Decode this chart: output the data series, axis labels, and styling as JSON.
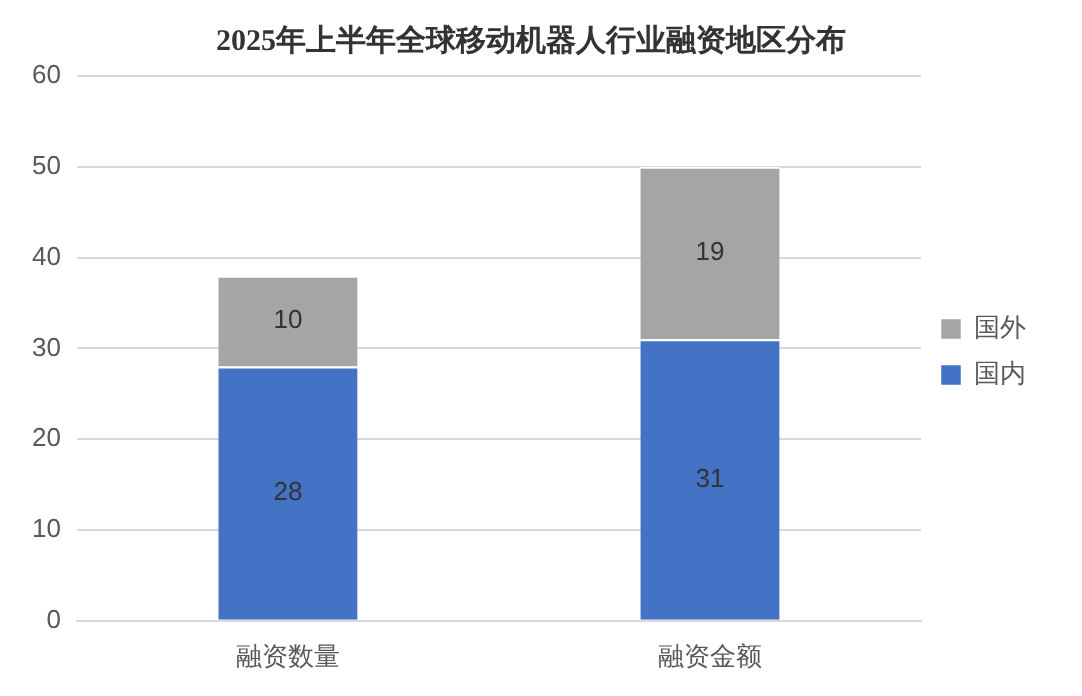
{
  "chart_data": {
    "type": "bar",
    "title": "2025年上半年全球移动机器人行业融资地区分布",
    "categories": [
      "融资数量",
      "融资金额"
    ],
    "stacked": true,
    "series": [
      {
        "name": "国内",
        "color": "#4472c4",
        "values": [
          28,
          31
        ]
      },
      {
        "name": "国外",
        "color": "#a5a5a5",
        "values": [
          10,
          19
        ]
      }
    ],
    "ylim": [
      0,
      60
    ],
    "yticks": [
      0,
      10,
      20,
      30,
      40,
      50,
      60
    ],
    "grid": "y",
    "legend": "right",
    "data_labels": true
  }
}
